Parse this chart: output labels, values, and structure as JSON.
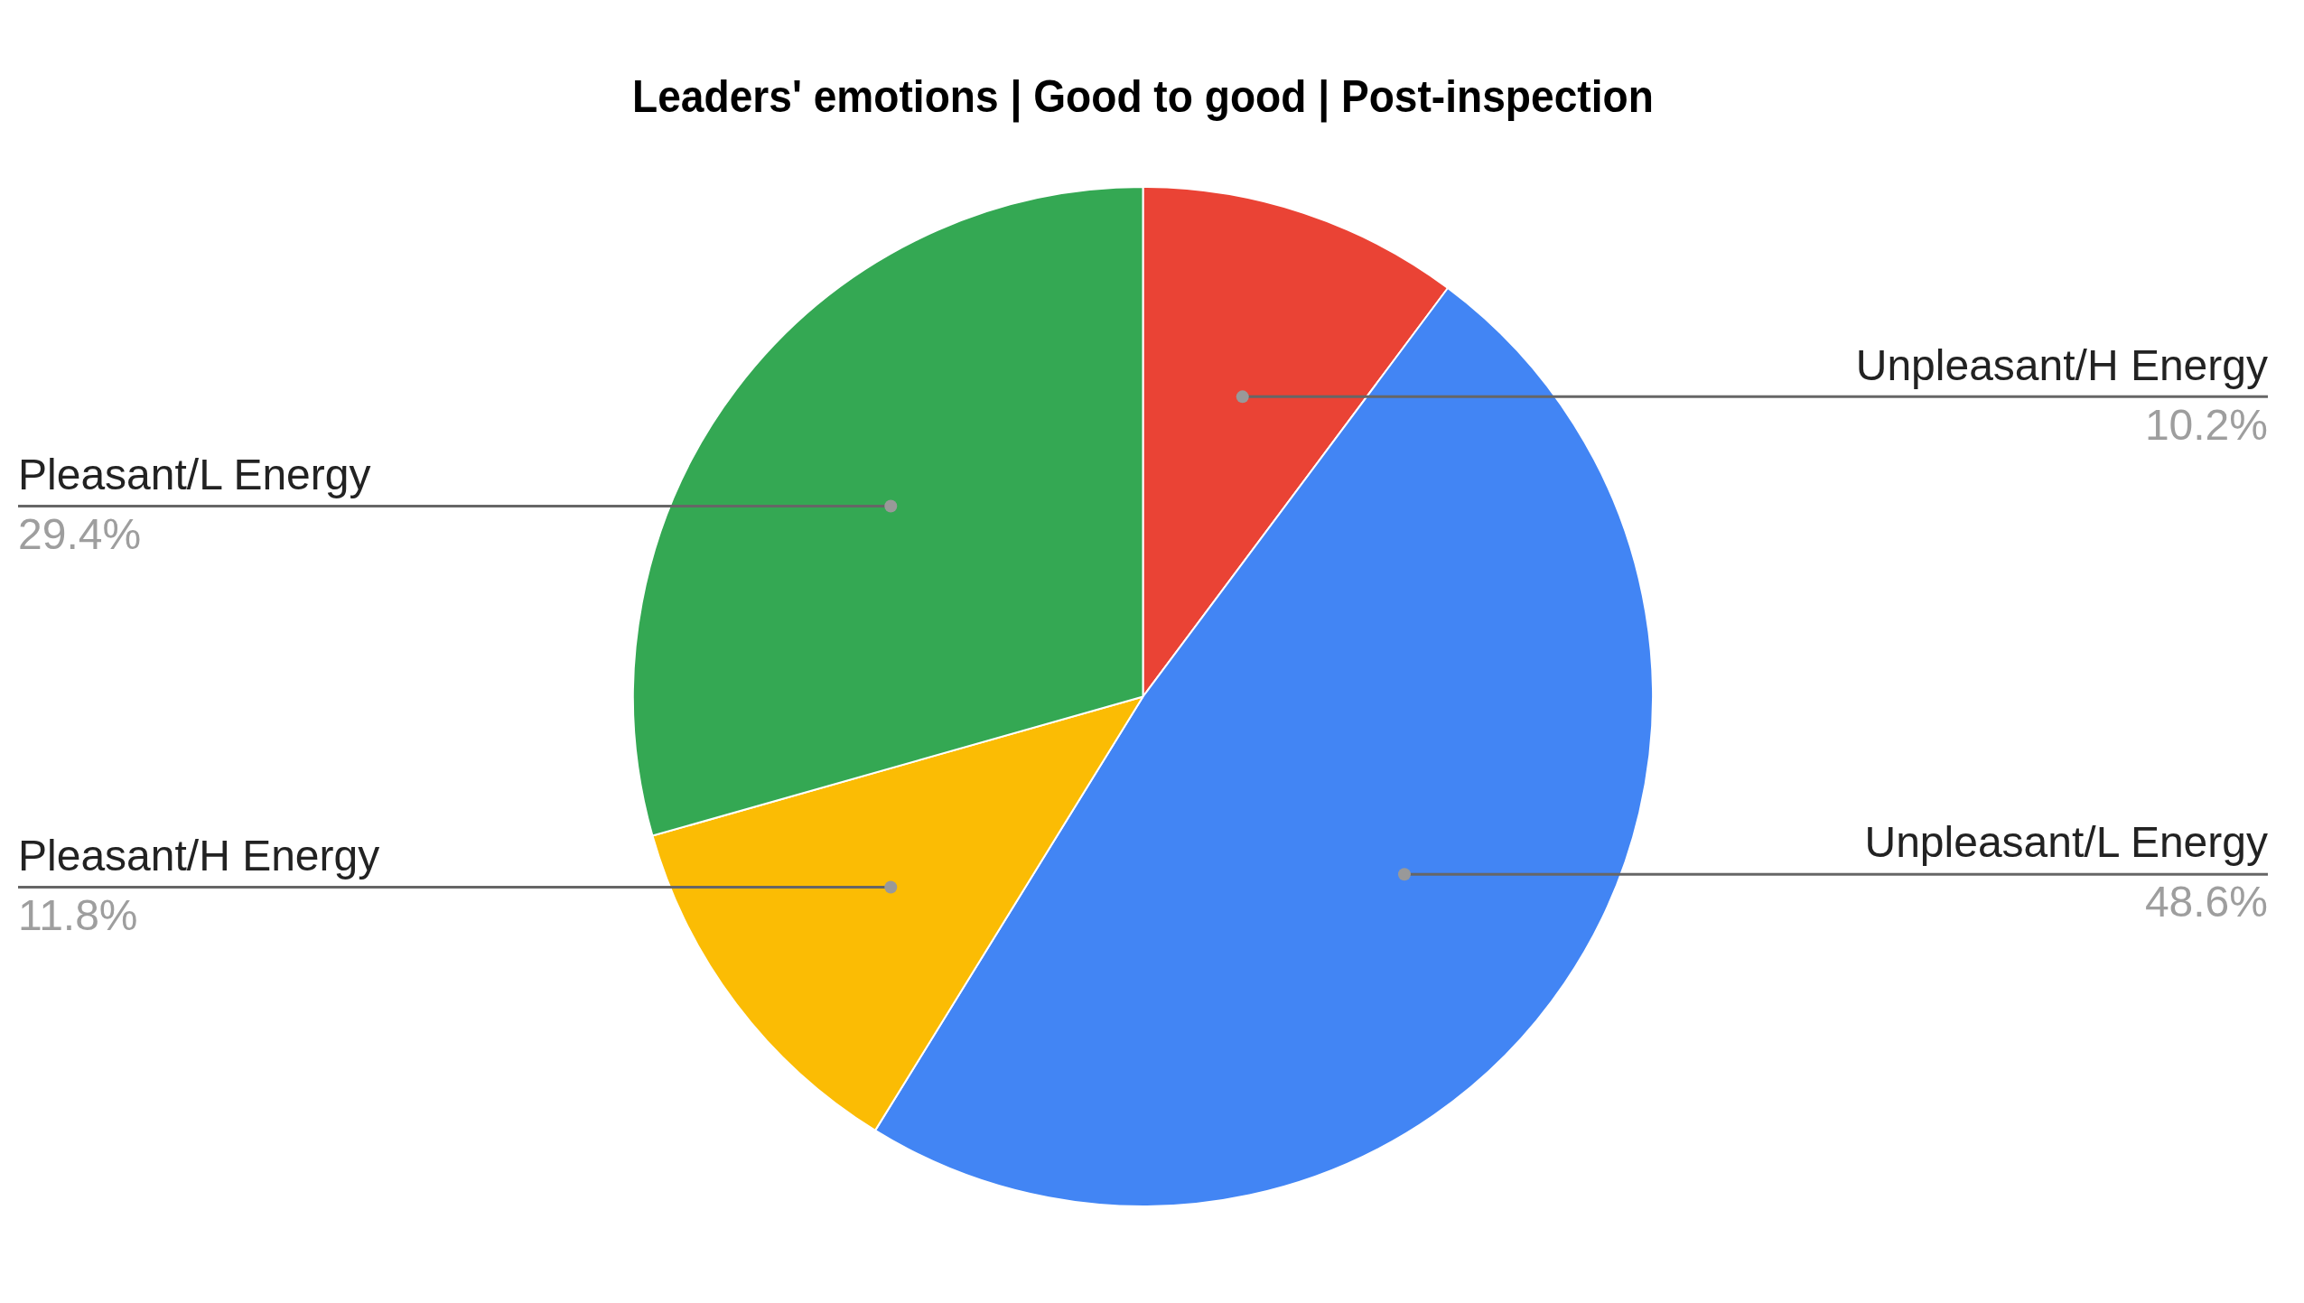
{
  "chart_data": {
    "type": "pie",
    "title": "Leaders' emotions | Good to good | Post-inspection",
    "categories": [
      "Unpleasant/H Energy",
      "Unpleasant/L Energy",
      "Pleasant/H Energy",
      "Pleasant/L Energy"
    ],
    "values": [
      10.2,
      48.6,
      11.8,
      29.4
    ],
    "colors": [
      "#ea4335",
      "#4285f4",
      "#fbbc04",
      "#34a853"
    ],
    "value_labels": [
      "10.2%",
      "48.6%",
      "11.8%",
      "29.4%"
    ],
    "legend": false
  }
}
